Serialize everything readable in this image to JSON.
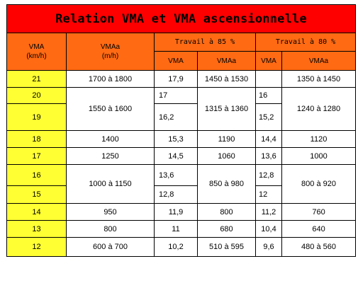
{
  "title": "Relation VMA et VMA ascensionnelle",
  "headers": {
    "vma": "VMA\n(km/h)",
    "vmaa": "VMAa\n(m/h)",
    "travail85": "Travail à 85 %",
    "travail80": "Travail à 80 %",
    "sub_vma": "VMA",
    "sub_vmaa": "VMAa"
  },
  "rows": {
    "r21": {
      "vma": "21",
      "vmaa": "1700 à 1800",
      "v85": "17,9",
      "a85": "1450 à 1530",
      "v80": "",
      "a80": "1350 à 1450"
    },
    "r20": {
      "vma": "20",
      "v85": "17",
      "v80": "16"
    },
    "r19": {
      "vma": "19",
      "v85": "16,2",
      "v80": "15,2"
    },
    "g2019": {
      "vmaa": "1550 à 1600",
      "a85": "1315 à 1360",
      "a80": "1240 à 1280"
    },
    "r18": {
      "vma": "18",
      "vmaa": "1400",
      "v85": "15,3",
      "a85": "1190",
      "v80": "14,4",
      "a80": "1120"
    },
    "r17": {
      "vma": "17",
      "vmaa": "1250",
      "v85": "14,5",
      "a85": "1060",
      "v80": "13,6",
      "a80": "1000"
    },
    "r16": {
      "vma": "16",
      "v85": "13,6",
      "v80": "12,8"
    },
    "r15": {
      "vma": "15",
      "v85": "12,8",
      "v80": "12"
    },
    "g1615": {
      "vmaa": "1000 à 1150",
      "a85": "850 à 980",
      "a80": "800 à 920"
    },
    "r14": {
      "vma": "14",
      "vmaa": "950",
      "v85": "11,9",
      "a85": "800",
      "v80": "11,2",
      "a80": "760"
    },
    "r13": {
      "vma": "13",
      "vmaa": "800",
      "v85": "11",
      "a85": "680",
      "v80": "10,4",
      "a80": "640"
    },
    "r12": {
      "vma": "12",
      "vmaa": "600 à 700",
      "v85": "10,2",
      "a85": "510 à 595",
      "v80": "9,6",
      "a80": "480 à 560"
    }
  },
  "colors": {
    "title_bg": "#ff0000",
    "header_bg": "#ff6a13",
    "vma_col_bg": "#ffff33"
  }
}
